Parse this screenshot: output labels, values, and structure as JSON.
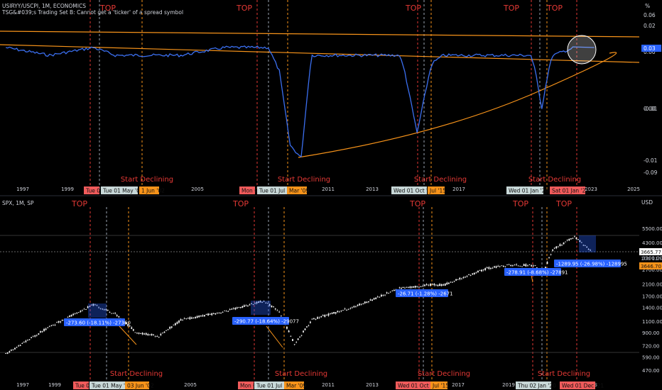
{
  "panes": [
    {
      "symbol_line": "USIRYY/USCPI, 1M, ECONOMICS",
      "error_line": "TSG&#039;s Trading Set B: Cannot get a 'ticker' of a spread symbol",
      "price_unit": "%",
      "axis_labels": [
        "0.06",
        "0.02",
        "0.00",
        "-0.01",
        "-0.01",
        "-0.09"
      ],
      "last_value": "0.03",
      "top_label": "TOP",
      "decline_label": "Start Declining",
      "x_years": [
        "1997",
        "1999",
        "2005",
        "2011",
        "2013",
        "2017",
        "2023",
        "2025"
      ],
      "date_tags": [
        {
          "text": "Tue 01",
          "color": "#f05b5b"
        },
        {
          "text": "Tue 01 May '01",
          "color": "#c8d8d8"
        },
        {
          "text": "1 Jun '02",
          "color": "#f7931a"
        },
        {
          "text": "Mon 01",
          "color": "#f05b5b"
        },
        {
          "text": "Tue 01 Jul '08",
          "color": "#c8d8d8"
        },
        {
          "text": "Mar '09",
          "color": "#f7931a"
        },
        {
          "text": "Wed 01 Oct '14",
          "color": "#c8d8d8"
        },
        {
          "text": "Jul '15",
          "color": "#f7931a"
        },
        {
          "text": "Wed 01 Jan '20",
          "color": "#c8d8d8"
        },
        {
          "text": "Sat 01 Jan '22",
          "color": "#f05b5b"
        }
      ]
    },
    {
      "symbol_line": "SPX, 1M, SP",
      "price_unit": "USD",
      "axis_labels": [
        "5500.00",
        "4300.00",
        "3300.00",
        "2700.00",
        "2100.00",
        "1700.00",
        "1400.00",
        "1100.00",
        "900.00",
        "720.00",
        "590.00",
        "470.00"
      ],
      "last_price": "3665.77",
      "countdown": "10d 11h",
      "orange_price": "3646.70",
      "top_label": "TOP",
      "decline_label": "Start Declining",
      "x_years": [
        "1997",
        "1999",
        "2005",
        "2011",
        "2013",
        "2017",
        "2019",
        "2023"
      ],
      "date_tags": [
        {
          "text": "Tue 01",
          "color": "#f05b5b"
        },
        {
          "text": "Tue 01 May '01",
          "color": "#c8d8d8"
        },
        {
          "text": "03 Jun '02",
          "color": "#f7931a"
        },
        {
          "text": "Mon 01",
          "color": "#f05b5b"
        },
        {
          "text": "Tue 01 Jul '08",
          "color": "#c8d8d8"
        },
        {
          "text": "Mar '09",
          "color": "#f7931a"
        },
        {
          "text": "Wed 01 Oct '14",
          "color": "#f05b5b"
        },
        {
          "text": "Jul '15",
          "color": "#f7931a"
        },
        {
          "text": "Thu 02 Jan '20",
          "color": "#c8d8d8"
        },
        {
          "text": "Wed 01 Dec '21",
          "color": "#f05b5b"
        }
      ],
      "measure_labels": [
        "-273.60 (-18.11%) -27360",
        "-290.77 (-18.64%) -29077",
        "-26.71 (-1.28%) -2671",
        "-278.91 (-8.68%) -27891",
        "-1289.95 (-26.98%) -128995"
      ]
    }
  ],
  "colors": {
    "background": "#000000",
    "ratio_line": "#3b6ff0",
    "trendline": "#f7931a",
    "top_label": "#e53935",
    "decline_label": "#e53935",
    "candle": "#ffffff",
    "measure_box": "#2962ff"
  },
  "chart_data": [
    {
      "type": "line",
      "series": [
        {
          "name": "USIRYY/USCPI",
          "x": [
            1996,
            1998,
            2000,
            2001,
            2002,
            2004,
            2006,
            2008,
            2008.5,
            2009,
            2009.5,
            2010,
            2012,
            2014,
            2014.8,
            2015.5,
            2016,
            2018,
            2019,
            2020,
            2020.5,
            2021,
            2022
          ],
          "values": [
            0.03,
            0.02,
            0.03,
            0.02,
            0.02,
            0.02,
            0.03,
            0.03,
            0.0,
            -0.06,
            -0.07,
            0.02,
            0.02,
            0.02,
            -0.05,
            0.01,
            0.02,
            0.02,
            0.02,
            0.02,
            -0.03,
            0.02,
            0.03
          ]
        }
      ]
    },
    {
      "type": "line",
      "series": [
        {
          "name": "SPX",
          "x": [
            1996,
            1998,
            2000,
            2001,
            2002,
            2003,
            2004,
            2006,
            2007.8,
            2008.5,
            2009.2,
            2010,
            2012,
            2014,
            2014.8,
            2015.5,
            2016,
            2018,
            2019,
            2020.2,
            2020.5,
            2021,
            2022,
            2022.8
          ],
          "values": [
            620,
            1000,
            1460,
            1250,
            900,
            850,
            1120,
            1300,
            1560,
            1300,
            740,
            1130,
            1420,
            1950,
            2000,
            2080,
            2050,
            2750,
            2900,
            2900,
            2400,
            3800,
            4750,
            3665.77
          ]
        }
      ]
    }
  ]
}
